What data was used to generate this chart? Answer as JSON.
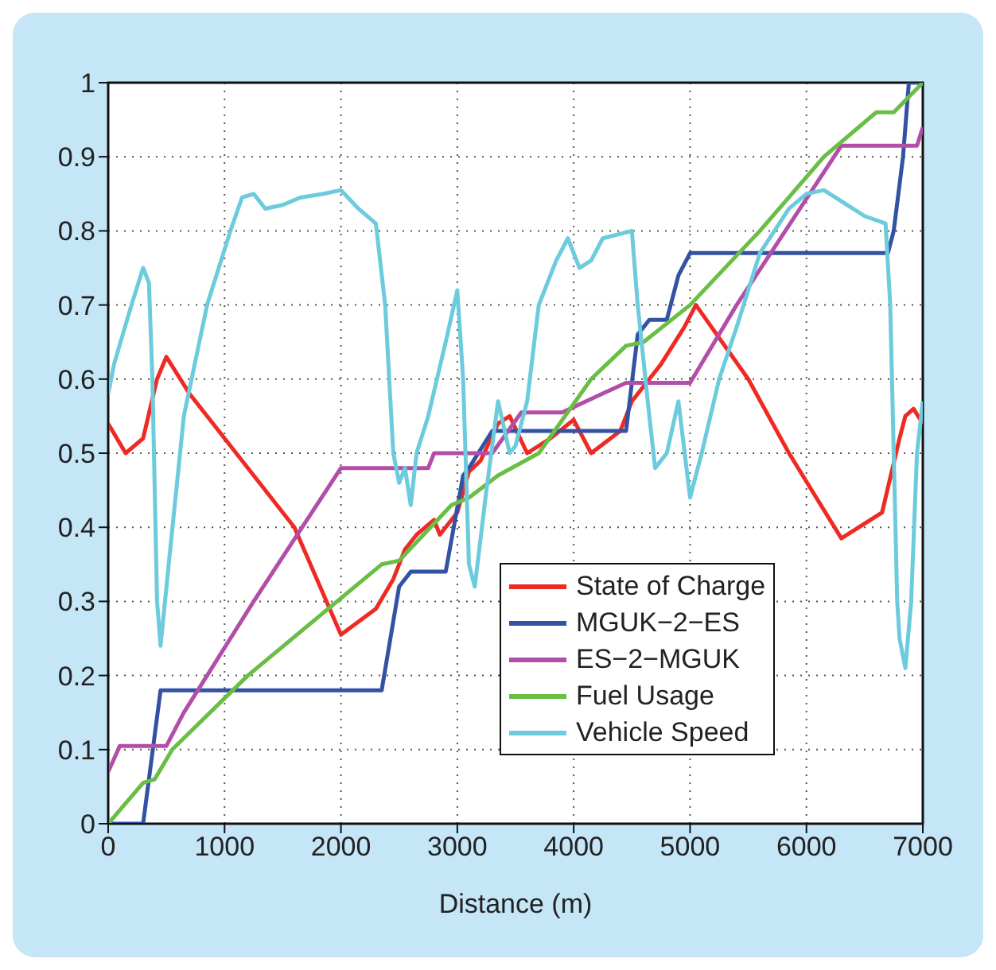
{
  "chart_data": {
    "type": "line",
    "xlabel": "Distance (m)",
    "xlim": [
      0,
      7000
    ],
    "xticks": [
      0,
      1000,
      2000,
      3000,
      4000,
      5000,
      6000,
      7000
    ],
    "ylim": [
      0,
      1
    ],
    "yticks": [
      0,
      0.1,
      0.2,
      0.3,
      0.4,
      0.5,
      0.6,
      0.7,
      0.8,
      0.9,
      1
    ],
    "grid": true,
    "legend": "bottom right",
    "line_style": "solid",
    "marker": "none",
    "series": [
      {
        "name": "State of Charge",
        "color": "#ee2a24",
        "x": [
          0,
          150,
          300,
          420,
          500,
          700,
          1100,
          1600,
          2000,
          2300,
          2450,
          2550,
          2650,
          2800,
          2850,
          3000,
          3100,
          3200,
          3350,
          3450,
          3600,
          3800,
          4000,
          4150,
          4400,
          4500,
          4650,
          4750,
          4950,
          5050,
          5500,
          5850,
          6300,
          6650,
          6800,
          6850,
          6920,
          7000
        ],
        "values": [
          0.54,
          0.5,
          0.52,
          0.6,
          0.63,
          0.58,
          0.5,
          0.4,
          0.255,
          0.29,
          0.33,
          0.37,
          0.39,
          0.41,
          0.39,
          0.42,
          0.475,
          0.49,
          0.54,
          0.55,
          0.5,
          0.52,
          0.545,
          0.5,
          0.53,
          0.57,
          0.6,
          0.62,
          0.67,
          0.7,
          0.6,
          0.5,
          0.385,
          0.42,
          0.52,
          0.55,
          0.56,
          0.54
        ]
      },
      {
        "name": "MGUK−2−ES",
        "color": "#3452a4",
        "x": [
          0,
          300,
          450,
          2350,
          2500,
          2600,
          2900,
          3050,
          3100,
          3300,
          4450,
          4550,
          4650,
          4800,
          4900,
          5000,
          6700,
          6750,
          6830,
          6880,
          7000
        ],
        "values": [
          0,
          0,
          0.18,
          0.18,
          0.32,
          0.34,
          0.34,
          0.47,
          0.48,
          0.53,
          0.53,
          0.66,
          0.68,
          0.68,
          0.74,
          0.77,
          0.77,
          0.8,
          0.9,
          1,
          1
        ]
      },
      {
        "name": "ES−2−MGUK",
        "color": "#b14fa8",
        "x": [
          0,
          100,
          500,
          650,
          1250,
          2000,
          2750,
          2800,
          3300,
          3550,
          3900,
          4450,
          5000,
          5400,
          6300,
          6950,
          7000
        ],
        "values": [
          0.07,
          0.105,
          0.105,
          0.15,
          0.3,
          0.48,
          0.48,
          0.5,
          0.5,
          0.555,
          0.555,
          0.595,
          0.595,
          0.7,
          0.915,
          0.915,
          0.94
        ]
      },
      {
        "name": "Fuel Usage",
        "color": "#6abd45",
        "x": [
          0,
          300,
          400,
          550,
          1200,
          2350,
          2500,
          2950,
          3100,
          3350,
          3700,
          4150,
          4450,
          4600,
          5000,
          5600,
          6150,
          6600,
          6750,
          7000
        ],
        "values": [
          0,
          0.055,
          0.06,
          0.1,
          0.2,
          0.35,
          0.355,
          0.43,
          0.44,
          0.47,
          0.5,
          0.6,
          0.645,
          0.65,
          0.7,
          0.8,
          0.9,
          0.96,
          0.96,
          1
        ]
      },
      {
        "name": "Vehicle Speed",
        "color": "#6ccbdc",
        "x": [
          0,
          50,
          200,
          300,
          350,
          380,
          420,
          450,
          520,
          650,
          850,
          1050,
          1150,
          1250,
          1350,
          1500,
          1650,
          1850,
          2000,
          2150,
          2300,
          2380,
          2450,
          2500,
          2550,
          2600,
          2650,
          2750,
          2900,
          3000,
          3050,
          3100,
          3150,
          3250,
          3350,
          3450,
          3500,
          3600,
          3700,
          3850,
          3950,
          4050,
          4150,
          4250,
          4500,
          4550,
          4650,
          4700,
          4800,
          4900,
          5000,
          5100,
          5250,
          5400,
          5600,
          5850,
          6000,
          6150,
          6300,
          6500,
          6680,
          6720,
          6780,
          6800,
          6850,
          6900,
          6950,
          7000
        ],
        "values": [
          0.58,
          0.62,
          0.7,
          0.75,
          0.73,
          0.6,
          0.3,
          0.24,
          0.35,
          0.55,
          0.7,
          0.8,
          0.845,
          0.85,
          0.83,
          0.835,
          0.845,
          0.85,
          0.855,
          0.83,
          0.81,
          0.7,
          0.5,
          0.46,
          0.48,
          0.43,
          0.5,
          0.55,
          0.65,
          0.72,
          0.6,
          0.35,
          0.32,
          0.45,
          0.57,
          0.5,
          0.51,
          0.57,
          0.7,
          0.76,
          0.79,
          0.75,
          0.76,
          0.79,
          0.8,
          0.7,
          0.55,
          0.48,
          0.5,
          0.57,
          0.44,
          0.5,
          0.6,
          0.67,
          0.77,
          0.83,
          0.85,
          0.855,
          0.84,
          0.82,
          0.81,
          0.7,
          0.3,
          0.25,
          0.21,
          0.3,
          0.5,
          0.57
        ]
      }
    ]
  }
}
